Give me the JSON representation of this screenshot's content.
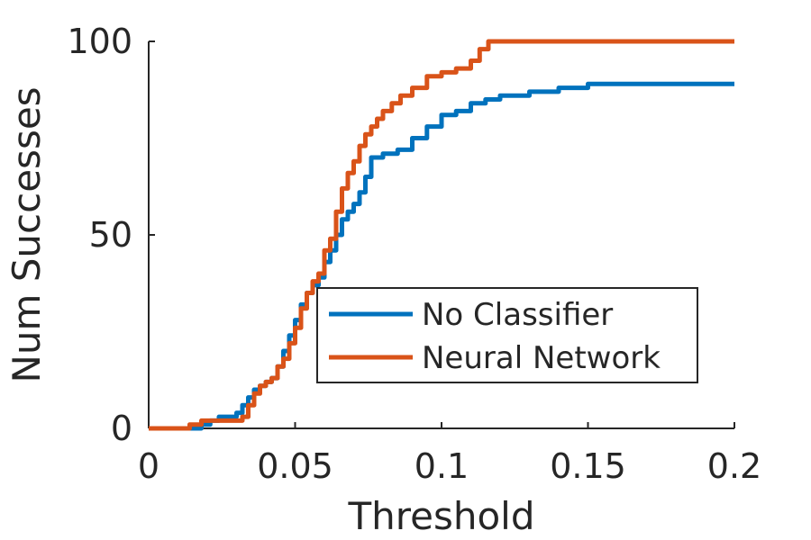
{
  "chart_data": {
    "type": "line",
    "title": "",
    "xlabel": "Threshold",
    "ylabel": "Num Successes",
    "xlim": [
      0,
      0.2
    ],
    "ylim": [
      0,
      100
    ],
    "xticks": [
      0,
      0.05,
      0.1,
      0.15,
      0.2
    ],
    "xtick_labels": [
      "0",
      "0.05",
      "0.1",
      "0.15",
      "0.2"
    ],
    "yticks": [
      0,
      50,
      100
    ],
    "ytick_labels": [
      "0",
      "50",
      "100"
    ],
    "grid": false,
    "legend_position": "center-right",
    "series": [
      {
        "name": "No Classifier",
        "color": "#0072BD",
        "x": [
          0,
          0.016,
          0.018,
          0.021,
          0.024,
          0.027,
          0.03,
          0.032,
          0.034,
          0.036,
          0.038,
          0.04,
          0.042,
          0.044,
          0.046,
          0.048,
          0.05,
          0.052,
          0.054,
          0.056,
          0.058,
          0.06,
          0.062,
          0.064,
          0.066,
          0.068,
          0.07,
          0.072,
          0.074,
          0.076,
          0.078,
          0.08,
          0.085,
          0.09,
          0.095,
          0.1,
          0.105,
          0.11,
          0.115,
          0.12,
          0.125,
          0.13,
          0.14,
          0.15,
          0.16,
          0.2
        ],
        "y": [
          0,
          0,
          1,
          2,
          3,
          3,
          4,
          6,
          8,
          10,
          11,
          12,
          13,
          16,
          20,
          24,
          28,
          32,
          35,
          37,
          39,
          43,
          46,
          50,
          54,
          56,
          58,
          61,
          65,
          70,
          70,
          71,
          72,
          75,
          78,
          81,
          82,
          84,
          85,
          86,
          86,
          87,
          88,
          89,
          89,
          89
        ]
      },
      {
        "name": "Neural Network",
        "color": "#D95319",
        "x": [
          0,
          0.012,
          0.014,
          0.018,
          0.025,
          0.032,
          0.034,
          0.036,
          0.038,
          0.04,
          0.042,
          0.044,
          0.046,
          0.048,
          0.05,
          0.052,
          0.054,
          0.056,
          0.058,
          0.06,
          0.062,
          0.064,
          0.066,
          0.068,
          0.07,
          0.072,
          0.074,
          0.076,
          0.078,
          0.08,
          0.083,
          0.086,
          0.09,
          0.095,
          0.1,
          0.105,
          0.11,
          0.113,
          0.116,
          0.2
        ],
        "y": [
          0,
          0,
          1,
          2,
          2,
          3,
          6,
          9,
          11,
          12,
          13,
          16,
          18,
          22,
          26,
          31,
          35,
          38,
          40,
          46,
          49,
          56,
          62,
          66,
          69,
          73,
          76,
          78,
          80,
          82,
          84,
          86,
          88,
          91,
          92,
          93,
          95,
          98,
          100,
          100
        ]
      }
    ]
  }
}
